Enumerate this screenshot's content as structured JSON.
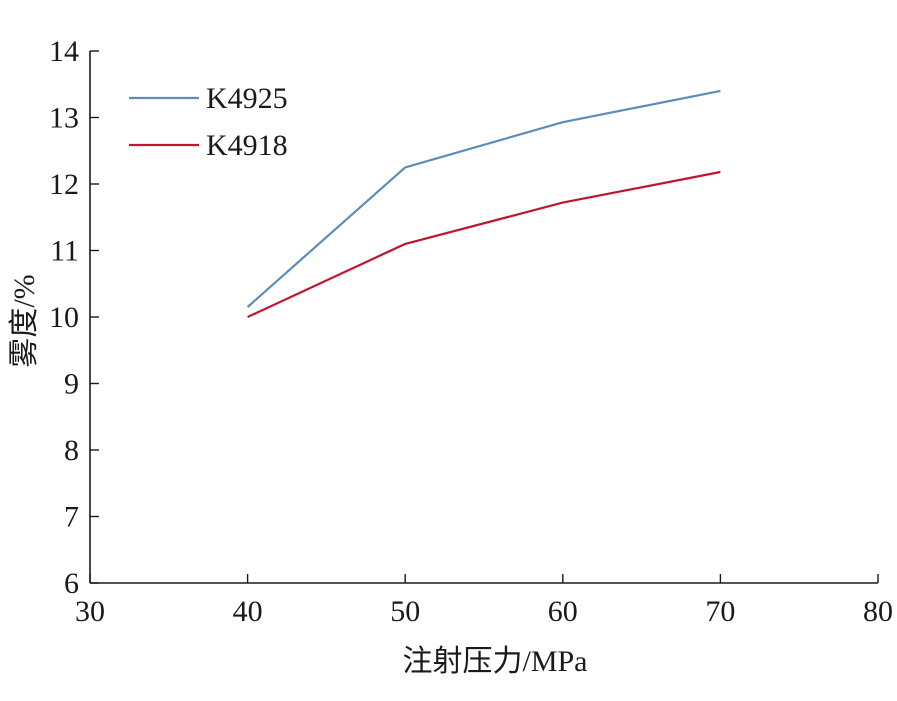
{
  "chart_data": {
    "type": "line",
    "title": "",
    "xlabel": "注射压力/MPa",
    "ylabel": "雾度/%",
    "xlim": [
      30,
      80
    ],
    "ylim": [
      6,
      14
    ],
    "xticks": [
      30,
      40,
      50,
      60,
      70,
      80
    ],
    "yticks": [
      6,
      7,
      8,
      9,
      10,
      11,
      12,
      13,
      14
    ],
    "grid": false,
    "legend_position": "top-left",
    "series": [
      {
        "name": "K4925",
        "color": "#5b8db8",
        "x": [
          40,
          50,
          60,
          70
        ],
        "y": [
          10.15,
          12.25,
          12.93,
          13.4
        ]
      },
      {
        "name": "K4918",
        "color": "#c0152f",
        "x": [
          40,
          50,
          60,
          70
        ],
        "y": [
          10.0,
          11.1,
          11.72,
          12.18
        ]
      }
    ]
  }
}
